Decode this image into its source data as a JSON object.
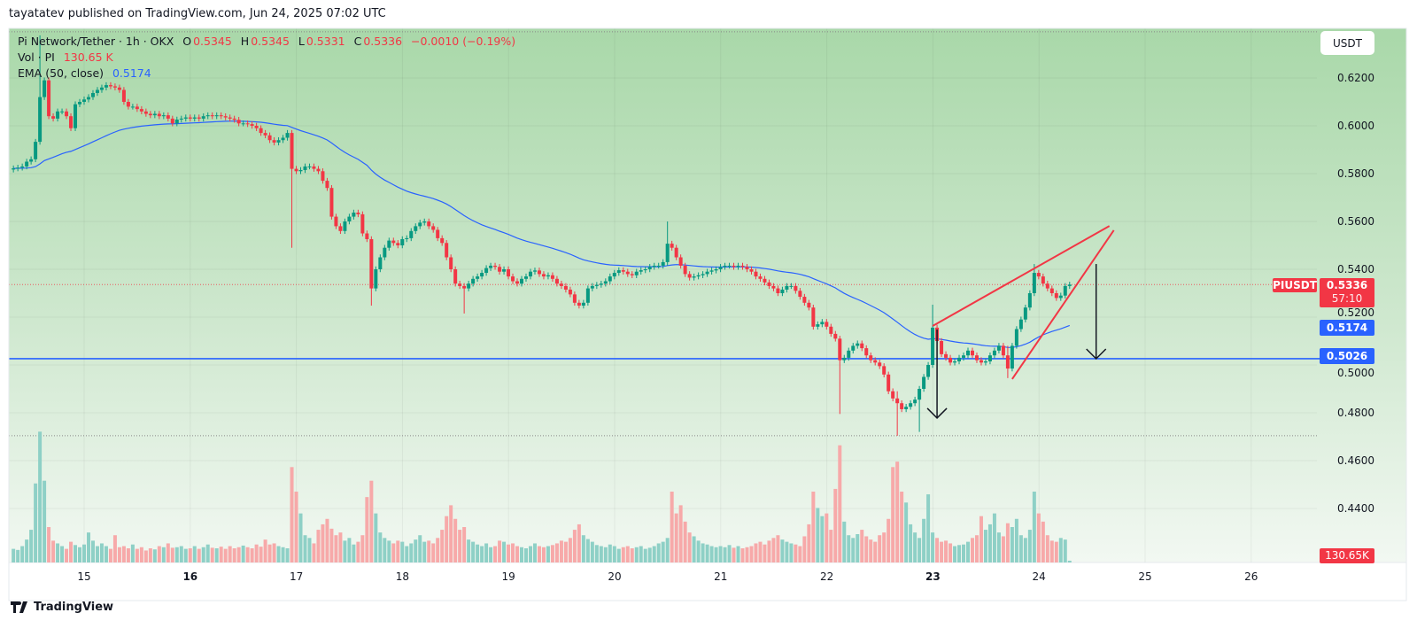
{
  "publish_note": "tayatatev published on TradingView.com, Jun 24, 2025 07:02 UTC",
  "legend": {
    "symbol": "Pi Network/Tether · 1h · OKX",
    "o_label": "O",
    "o": "0.5345",
    "h_label": "H",
    "h": "0.5345",
    "l_label": "L",
    "l": "0.5331",
    "c_label": "C",
    "c": "0.5336",
    "change": "−0.0010 (−0.19%)",
    "vol_label": "Vol · PI",
    "vol": "130.65 K",
    "ema_label": "EMA (50, close)",
    "ema": "0.5174"
  },
  "currency_button": "USDT",
  "badges": {
    "symbol": "PIUSDT",
    "last_price": "0.5336",
    "countdown": "57:10",
    "ema": "0.5174",
    "level": "0.5026",
    "volume": "130.65K"
  },
  "brand": "TradingView",
  "colors": {
    "up": "#089981",
    "down": "#f23645",
    "ema": "#2962ff",
    "level": "#2962ff",
    "trendline": "#f23645",
    "arrow": "#131722",
    "vol_up": "#8ed0c6",
    "vol_down": "#f7a9a9"
  },
  "chart_data": {
    "type": "candlestick",
    "timeframe": "1h",
    "first_candle": "2025-06-14T08:00",
    "price_ticks": [
      "0.6200",
      "0.6000",
      "0.5800",
      "0.5600",
      "0.5400",
      "0.5200",
      "0.5000",
      "0.4800",
      "0.4600",
      "0.4400"
    ],
    "time_ticks": [
      "15",
      "16",
      "17",
      "18",
      "19",
      "20",
      "21",
      "22",
      "23",
      "24",
      "25",
      "26"
    ],
    "ylim": [
      0.4307,
      0.6422
    ],
    "grid": true,
    "closes": [
      0.5822,
      0.5825,
      0.583,
      0.585,
      0.586,
      0.5933,
      0.612,
      0.619,
      0.604,
      0.603,
      0.606,
      0.606,
      0.604,
      0.599,
      0.609,
      0.61,
      0.611,
      0.612,
      0.6137,
      0.615,
      0.616,
      0.617,
      0.6165,
      0.616,
      0.615,
      0.61,
      0.608,
      0.608,
      0.607,
      0.606,
      0.605,
      0.6044,
      0.605,
      0.604,
      0.6044,
      0.603,
      0.601,
      0.6026,
      0.603,
      0.6035,
      0.603,
      0.6035,
      0.603,
      0.604,
      0.6044,
      0.604,
      0.6044,
      0.604,
      0.6035,
      0.603,
      0.6025,
      0.601,
      0.601,
      0.6007,
      0.6,
      0.599,
      0.597,
      0.596,
      0.594,
      0.593,
      0.594,
      0.595,
      0.597,
      0.582,
      0.581,
      0.5815,
      0.583,
      0.583,
      0.582,
      0.581,
      0.577,
      0.574,
      0.562,
      0.558,
      0.556,
      0.56,
      0.562,
      0.5637,
      0.563,
      0.555,
      0.5526,
      0.532,
      0.54,
      0.545,
      0.549,
      0.552,
      0.551,
      0.55,
      0.5526,
      0.553,
      0.556,
      0.558,
      0.5595,
      0.56,
      0.558,
      0.5565,
      0.553,
      0.551,
      0.545,
      0.54,
      0.534,
      0.533,
      0.532,
      0.534,
      0.536,
      0.537,
      0.5385,
      0.5405,
      0.5415,
      0.541,
      0.539,
      0.54,
      0.537,
      0.535,
      0.534,
      0.536,
      0.537,
      0.539,
      0.5395,
      0.538,
      0.537,
      0.5375,
      0.536,
      0.534,
      0.533,
      0.5315,
      0.5295,
      0.526,
      0.5248,
      0.526,
      0.532,
      0.533,
      0.5335,
      0.534,
      0.535,
      0.537,
      0.5385,
      0.5396,
      0.539,
      0.538,
      0.5375,
      0.539,
      0.5396,
      0.54,
      0.541,
      0.5415,
      0.5415,
      0.543,
      0.5507,
      0.549,
      0.545,
      0.5415,
      0.538,
      0.5365,
      0.537,
      0.5375,
      0.538,
      0.539,
      0.5395,
      0.54,
      0.541,
      0.5415,
      0.5415,
      0.541,
      0.5415,
      0.541,
      0.54,
      0.539,
      0.537,
      0.536,
      0.5345,
      0.533,
      0.532,
      0.53,
      0.5315,
      0.533,
      0.533,
      0.531,
      0.5285,
      0.526,
      0.524,
      0.516,
      0.517,
      0.518,
      0.516,
      0.513,
      0.511,
      0.502,
      0.503,
      0.506,
      0.508,
      0.509,
      0.507,
      0.504,
      0.502,
      0.501,
      0.4995,
      0.496,
      0.489,
      0.486,
      0.484,
      0.4815,
      0.4825,
      0.484,
      0.4855,
      0.49,
      0.495,
      0.5,
      0.5156,
      0.51,
      0.5045,
      0.503,
      0.501,
      0.5015,
      0.503,
      0.504,
      0.506,
      0.504,
      0.502,
      0.501,
      0.5015,
      0.504,
      0.506,
      0.508,
      0.504,
      0.4985,
      0.508,
      0.515,
      0.519,
      0.524,
      0.53,
      0.5385,
      0.537,
      0.534,
      0.532,
      0.53,
      0.528,
      0.529,
      0.533,
      0.5336
    ],
    "notable_wicks": [
      [
        6,
        0.6378,
        0.596
      ],
      [
        63,
        0.597,
        0.549
      ],
      [
        81,
        0.5526,
        0.5248
      ],
      [
        102,
        0.534,
        0.5215
      ],
      [
        148,
        0.56,
        0.5415
      ],
      [
        187,
        0.511,
        0.4795
      ],
      [
        200,
        0.489,
        0.4704
      ],
      [
        205,
        0.491,
        0.472
      ],
      [
        208,
        0.5252,
        0.5
      ],
      [
        225,
        0.508,
        0.4945
      ],
      [
        231,
        0.5422,
        0.53
      ]
    ],
    "volume_k": [
      1000,
      920,
      1200,
      1680,
      2400,
      5800,
      9600,
      6000,
      2600,
      1600,
      1400,
      1200,
      1000,
      1520,
      1280,
      1120,
      1320,
      2200,
      1600,
      1200,
      1400,
      1200,
      1000,
      2000,
      1120,
      1200,
      1040,
      1320,
      1000,
      1120,
      880,
      1040,
      960,
      1200,
      1120,
      1400,
      1080,
      1120,
      1200,
      1000,
      1040,
      1200,
      1000,
      1120,
      1320,
      1080,
      1040,
      1160,
      1000,
      1200,
      1040,
      1120,
      1240,
      1120,
      1040,
      1320,
      1160,
      1680,
      1320,
      1400,
      1200,
      1120,
      1040,
      7000,
      5200,
      3600,
      2000,
      1800,
      1400,
      2400,
      2800,
      3200,
      2480,
      2000,
      2200,
      1600,
      1800,
      1320,
      1520,
      2000,
      4800,
      6000,
      3600,
      2200,
      1800,
      1600,
      1400,
      1600,
      1520,
      1200,
      1400,
      1680,
      2000,
      1520,
      1600,
      1400,
      1800,
      2400,
      3400,
      4200,
      3200,
      2400,
      2600,
      1680,
      1520,
      1320,
      1200,
      1400,
      1120,
      1200,
      1600,
      1520,
      1320,
      1400,
      1200,
      1120,
      1040,
      1200,
      1400,
      1200,
      1120,
      1200,
      1280,
      1400,
      1600,
      1520,
      1800,
      2400,
      2800,
      2000,
      1720,
      1520,
      1280,
      1200,
      1120,
      1320,
      1200,
      1000,
      1120,
      1200,
      1040,
      1120,
      1200,
      1000,
      1080,
      1200,
      1400,
      1520,
      1800,
      5200,
      3600,
      4200,
      3000,
      2200,
      1920,
      1600,
      1400,
      1320,
      1200,
      1120,
      1200,
      1120,
      1280,
      1080,
      1200,
      1040,
      1120,
      1200,
      1400,
      1520,
      1320,
      1600,
      1800,
      2000,
      1680,
      1520,
      1400,
      1320,
      1200,
      1920,
      2800,
      5200,
      4000,
      3400,
      3600,
      2400,
      5400,
      8600,
      3000,
      2000,
      1800,
      2080,
      2400,
      1920,
      1680,
      1520,
      2000,
      2200,
      3200,
      7000,
      7400,
      5200,
      4400,
      2800,
      2200,
      1800,
      3200,
      5000,
      2200,
      1800,
      1520,
      1600,
      1400,
      1200,
      1280,
      1320,
      1520,
      1800,
      2000,
      3400,
      2400,
      2800,
      3600,
      2200,
      1920,
      2880,
      2600,
      3200,
      2000,
      1800,
      2400,
      5200,
      3600,
      3000,
      2000,
      1600,
      1520,
      1800,
      1680,
      130.65
    ],
    "ema_period": 50,
    "horizontal_level": 0.5026,
    "highest_high": 0.6393,
    "lowest_low": 0.4704,
    "trendlines": [
      {
        "from": [
          "2025-06-23T00:00",
          0.5163
        ],
        "to": [
          "2025-06-24T16:00",
          0.5581
        ]
      },
      {
        "from": [
          "2025-06-23T18:00",
          0.4941
        ],
        "to": [
          "2025-06-24T17:00",
          0.5563
        ]
      }
    ],
    "arrows": [
      {
        "time": "2025-06-23T01:00",
        "from": 0.5148,
        "to": 0.4778
      },
      {
        "time": "2025-06-24T13:00",
        "from": 0.5422,
        "to": 0.5026
      }
    ]
  }
}
